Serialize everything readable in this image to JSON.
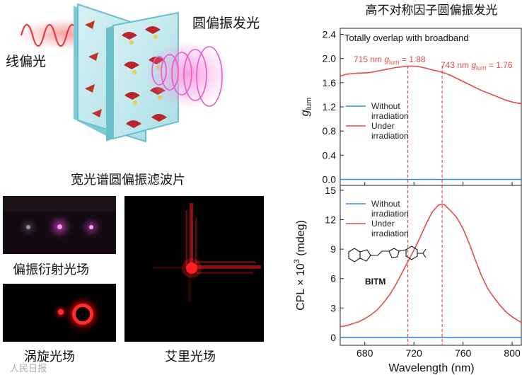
{
  "left": {
    "labels": {
      "linear_polarized": "线偏光",
      "cpl_emission": "圆偏振发光",
      "broadband_filter": "宽光谱圆偏振滤波片",
      "polarization_diffraction": "偏振衍射光场",
      "vortex": "涡旋光场",
      "airy": "艾里光场"
    }
  },
  "watermark": "人民日报",
  "colors": {
    "without": "#2f8fe0",
    "under": "#e24b4b",
    "dash": "#e24b4b",
    "laser": "#ff1a1a"
  },
  "chart_data": {
    "type": "line",
    "title": "高不对称因子圆偏振发光",
    "xlabel": "Wavelength (nm)",
    "xlim": [
      660,
      808
    ],
    "x_ticks": [
      680,
      720,
      760,
      800
    ],
    "markers_nm": [
      715,
      743
    ],
    "panels": [
      {
        "id": "glum",
        "ylabel_main": "g",
        "ylabel_sub": "lum",
        "ylim": [
          -0.1,
          2.5
        ],
        "y_ticks": [
          0.0,
          0.4,
          0.8,
          1.2,
          1.6,
          2.0,
          2.4
        ],
        "y_tick_labels": [
          "0.0",
          "0.4",
          "0.8",
          "1.2",
          "1.6",
          "2.0",
          "2.4"
        ],
        "note": "Totally overlap with broadband",
        "annotations": [
          {
            "pre": "715 nm ",
            "g": "g",
            "sub": "lum",
            "post": " = 1.88"
          },
          {
            "pre": "743 nm ",
            "g": "g",
            "sub": "lum",
            "post": " = 1.76"
          }
        ],
        "legend": [
          "Without irradiation",
          "Under irradiation"
        ],
        "legend_lines": [
          [
            "Without",
            "irradiation"
          ],
          [
            "Under",
            "irradiation"
          ]
        ],
        "series": [
          {
            "name": "Without irradiation",
            "x": [
              660,
              700,
              740,
              780,
              808
            ],
            "y": [
              0.0,
              0.0,
              0.0,
              0.0,
              0.0
            ]
          },
          {
            "name": "Under irradiation",
            "x": [
              660,
              665,
              670,
              675,
              680,
              685,
              690,
              695,
              700,
              705,
              710,
              715,
              720,
              725,
              730,
              735,
              740,
              745,
              750,
              755,
              760,
              765,
              770,
              775,
              780,
              785,
              790,
              795,
              800,
              805,
              808
            ],
            "y": [
              1.71,
              1.74,
              1.75,
              1.76,
              1.76,
              1.77,
              1.79,
              1.81,
              1.83,
              1.85,
              1.86,
              1.875,
              1.875,
              1.86,
              1.84,
              1.81,
              1.79,
              1.76,
              1.72,
              1.67,
              1.62,
              1.57,
              1.52,
              1.47,
              1.43,
              1.39,
              1.35,
              1.31,
              1.28,
              1.26,
              1.25
            ]
          }
        ]
      },
      {
        "id": "cpl",
        "ylabel_main": "CPL × 10",
        "ylabel_sup": "3",
        "ylabel_unit": " (mdeg)",
        "ylim": [
          -0.8,
          15.5
        ],
        "y_ticks": [
          0,
          3,
          6,
          9,
          12,
          15
        ],
        "y_tick_labels": [
          "0",
          "3",
          "6",
          "9",
          "12",
          "15"
        ],
        "legend": [
          "Without irradiation",
          "Under irradiation"
        ],
        "legend_lines": [
          [
            "Without",
            "irradiation"
          ],
          [
            "Under",
            "irradiation"
          ]
        ],
        "molecule_label": "BITM",
        "series": [
          {
            "name": "Without irradiation",
            "x": [
              660,
              700,
              740,
              780,
              808
            ],
            "y": [
              0.0,
              0.0,
              0.0,
              0.0,
              0.0
            ]
          },
          {
            "name": "Under irradiation",
            "x": [
              660,
              665,
              670,
              675,
              680,
              685,
              690,
              695,
              700,
              705,
              710,
              715,
              720,
              725,
              730,
              735,
              740,
              743,
              745,
              750,
              755,
              760,
              765,
              770,
              775,
              780,
              785,
              790,
              795,
              800,
              805,
              808
            ],
            "y": [
              1.1,
              1.2,
              1.4,
              1.6,
              1.9,
              2.3,
              2.8,
              3.5,
              4.3,
              5.3,
              6.5,
              7.7,
              8.9,
              10.2,
              11.6,
              12.8,
              13.5,
              13.6,
              13.5,
              12.9,
              12.2,
              11.1,
              9.6,
              7.9,
              6.3,
              5.0,
              4.1,
              3.3,
              2.6,
              2.1,
              1.7,
              1.5
            ]
          }
        ]
      }
    ]
  }
}
